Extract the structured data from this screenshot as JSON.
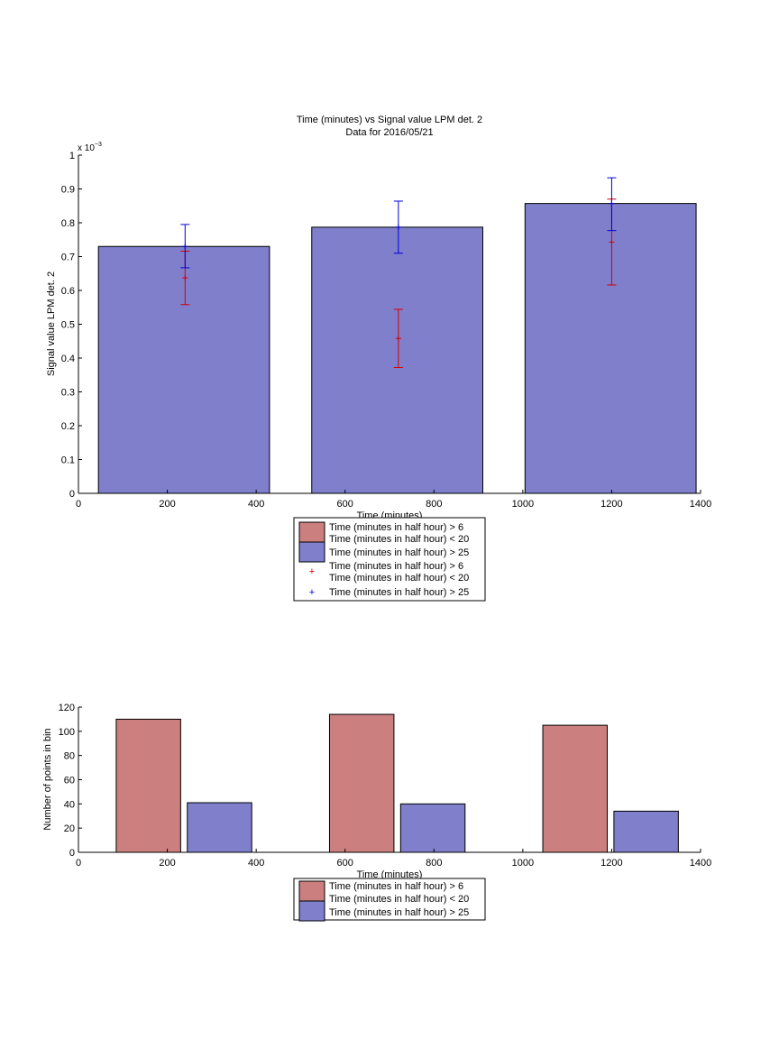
{
  "colors": {
    "red_bar": "#cc7f7f",
    "blue_bar": "#7f7fcc",
    "red_err": "#d40000",
    "blue_err": "#0000d4",
    "axis": "#000000"
  },
  "chart_data": [
    {
      "type": "bar",
      "title": "Time (minutes) vs Signal value LPM det. 2",
      "subtitle": "Data for 2016/05/21",
      "xlabel": "Time (minutes)",
      "ylabel": "Signal value LPM det. 2",
      "y_multiplier": "x 10",
      "y_exponent": "−3",
      "xlim": [
        0,
        1400
      ],
      "ylim": [
        0,
        1
      ],
      "xticks": [
        "0",
        "200",
        "400",
        "600",
        "800",
        "1000",
        "1200",
        "1400"
      ],
      "yticks": [
        "0",
        "0.1",
        "0.2",
        "0.3",
        "0.4",
        "0.5",
        "0.6",
        "0.7",
        "0.8",
        "0.9",
        "1"
      ],
      "bars": [
        {
          "x_start": 45,
          "x_end": 430,
          "value": 0.73
        },
        {
          "x_start": 525,
          "x_end": 910,
          "value": 0.787
        },
        {
          "x_start": 1005,
          "x_end": 1390,
          "value": 0.857
        }
      ],
      "series": [
        {
          "legend_label": "Time (minutes in half hour) > 6\nTime (minutes in half hour) < 20",
          "marker": "+",
          "points": [
            {
              "x": 240,
              "y": 0.637,
              "low": 0.558,
              "high": 0.716
            },
            {
              "x": 720,
              "y": 0.458,
              "low": 0.372,
              "high": 0.544
            },
            {
              "x": 1200,
              "y": 0.743,
              "low": 0.616,
              "high": 0.87
            }
          ]
        },
        {
          "legend_label": "Time (minutes in half hour) > 25",
          "marker": "+",
          "points": [
            {
              "x": 240,
              "y": 0.73,
              "low": 0.667,
              "high": 0.795
            },
            {
              "x": 720,
              "y": 0.787,
              "low": 0.71,
              "high": 0.864
            },
            {
              "x": 1200,
              "y": 0.857,
              "low": 0.777,
              "high": 0.933
            }
          ]
        }
      ],
      "legend": [
        "Time (minutes in half hour) > 6",
        "Time (minutes in half hour) < 20",
        "Time (minutes in half hour) > 25",
        "Time (minutes in half hour) > 6",
        "Time (minutes in half hour) < 20",
        "Time (minutes in half hour) > 25"
      ],
      "legend_placement": "below"
    },
    {
      "type": "bar",
      "xlabel": "Time (minutes)",
      "ylabel": "Number of points in bin",
      "xlim": [
        0,
        1400
      ],
      "ylim": [
        0,
        120
      ],
      "xticks": [
        "0",
        "200",
        "400",
        "600",
        "800",
        "1000",
        "1200",
        "1400"
      ],
      "yticks": [
        "0",
        "20",
        "40",
        "60",
        "80",
        "100",
        "120"
      ],
      "series": [
        {
          "legend_label": "Time (minutes in half hour) > 6\nTime (minutes in half hour) < 20",
          "bars": [
            {
              "x_start": 85,
              "x_end": 230,
              "value": 110
            },
            {
              "x_start": 565,
              "x_end": 710,
              "value": 114
            },
            {
              "x_start": 1045,
              "x_end": 1190,
              "value": 105
            }
          ]
        },
        {
          "legend_label": "Time (minutes in half hour) > 25",
          "bars": [
            {
              "x_start": 245,
              "x_end": 390,
              "value": 41
            },
            {
              "x_start": 725,
              "x_end": 870,
              "value": 40
            },
            {
              "x_start": 1205,
              "x_end": 1350,
              "value": 34
            }
          ]
        }
      ],
      "legend": [
        "Time (minutes in half hour) > 6",
        "Time (minutes in half hour) < 20",
        "Time (minutes in half hour) > 25"
      ],
      "legend_placement": "below"
    }
  ]
}
